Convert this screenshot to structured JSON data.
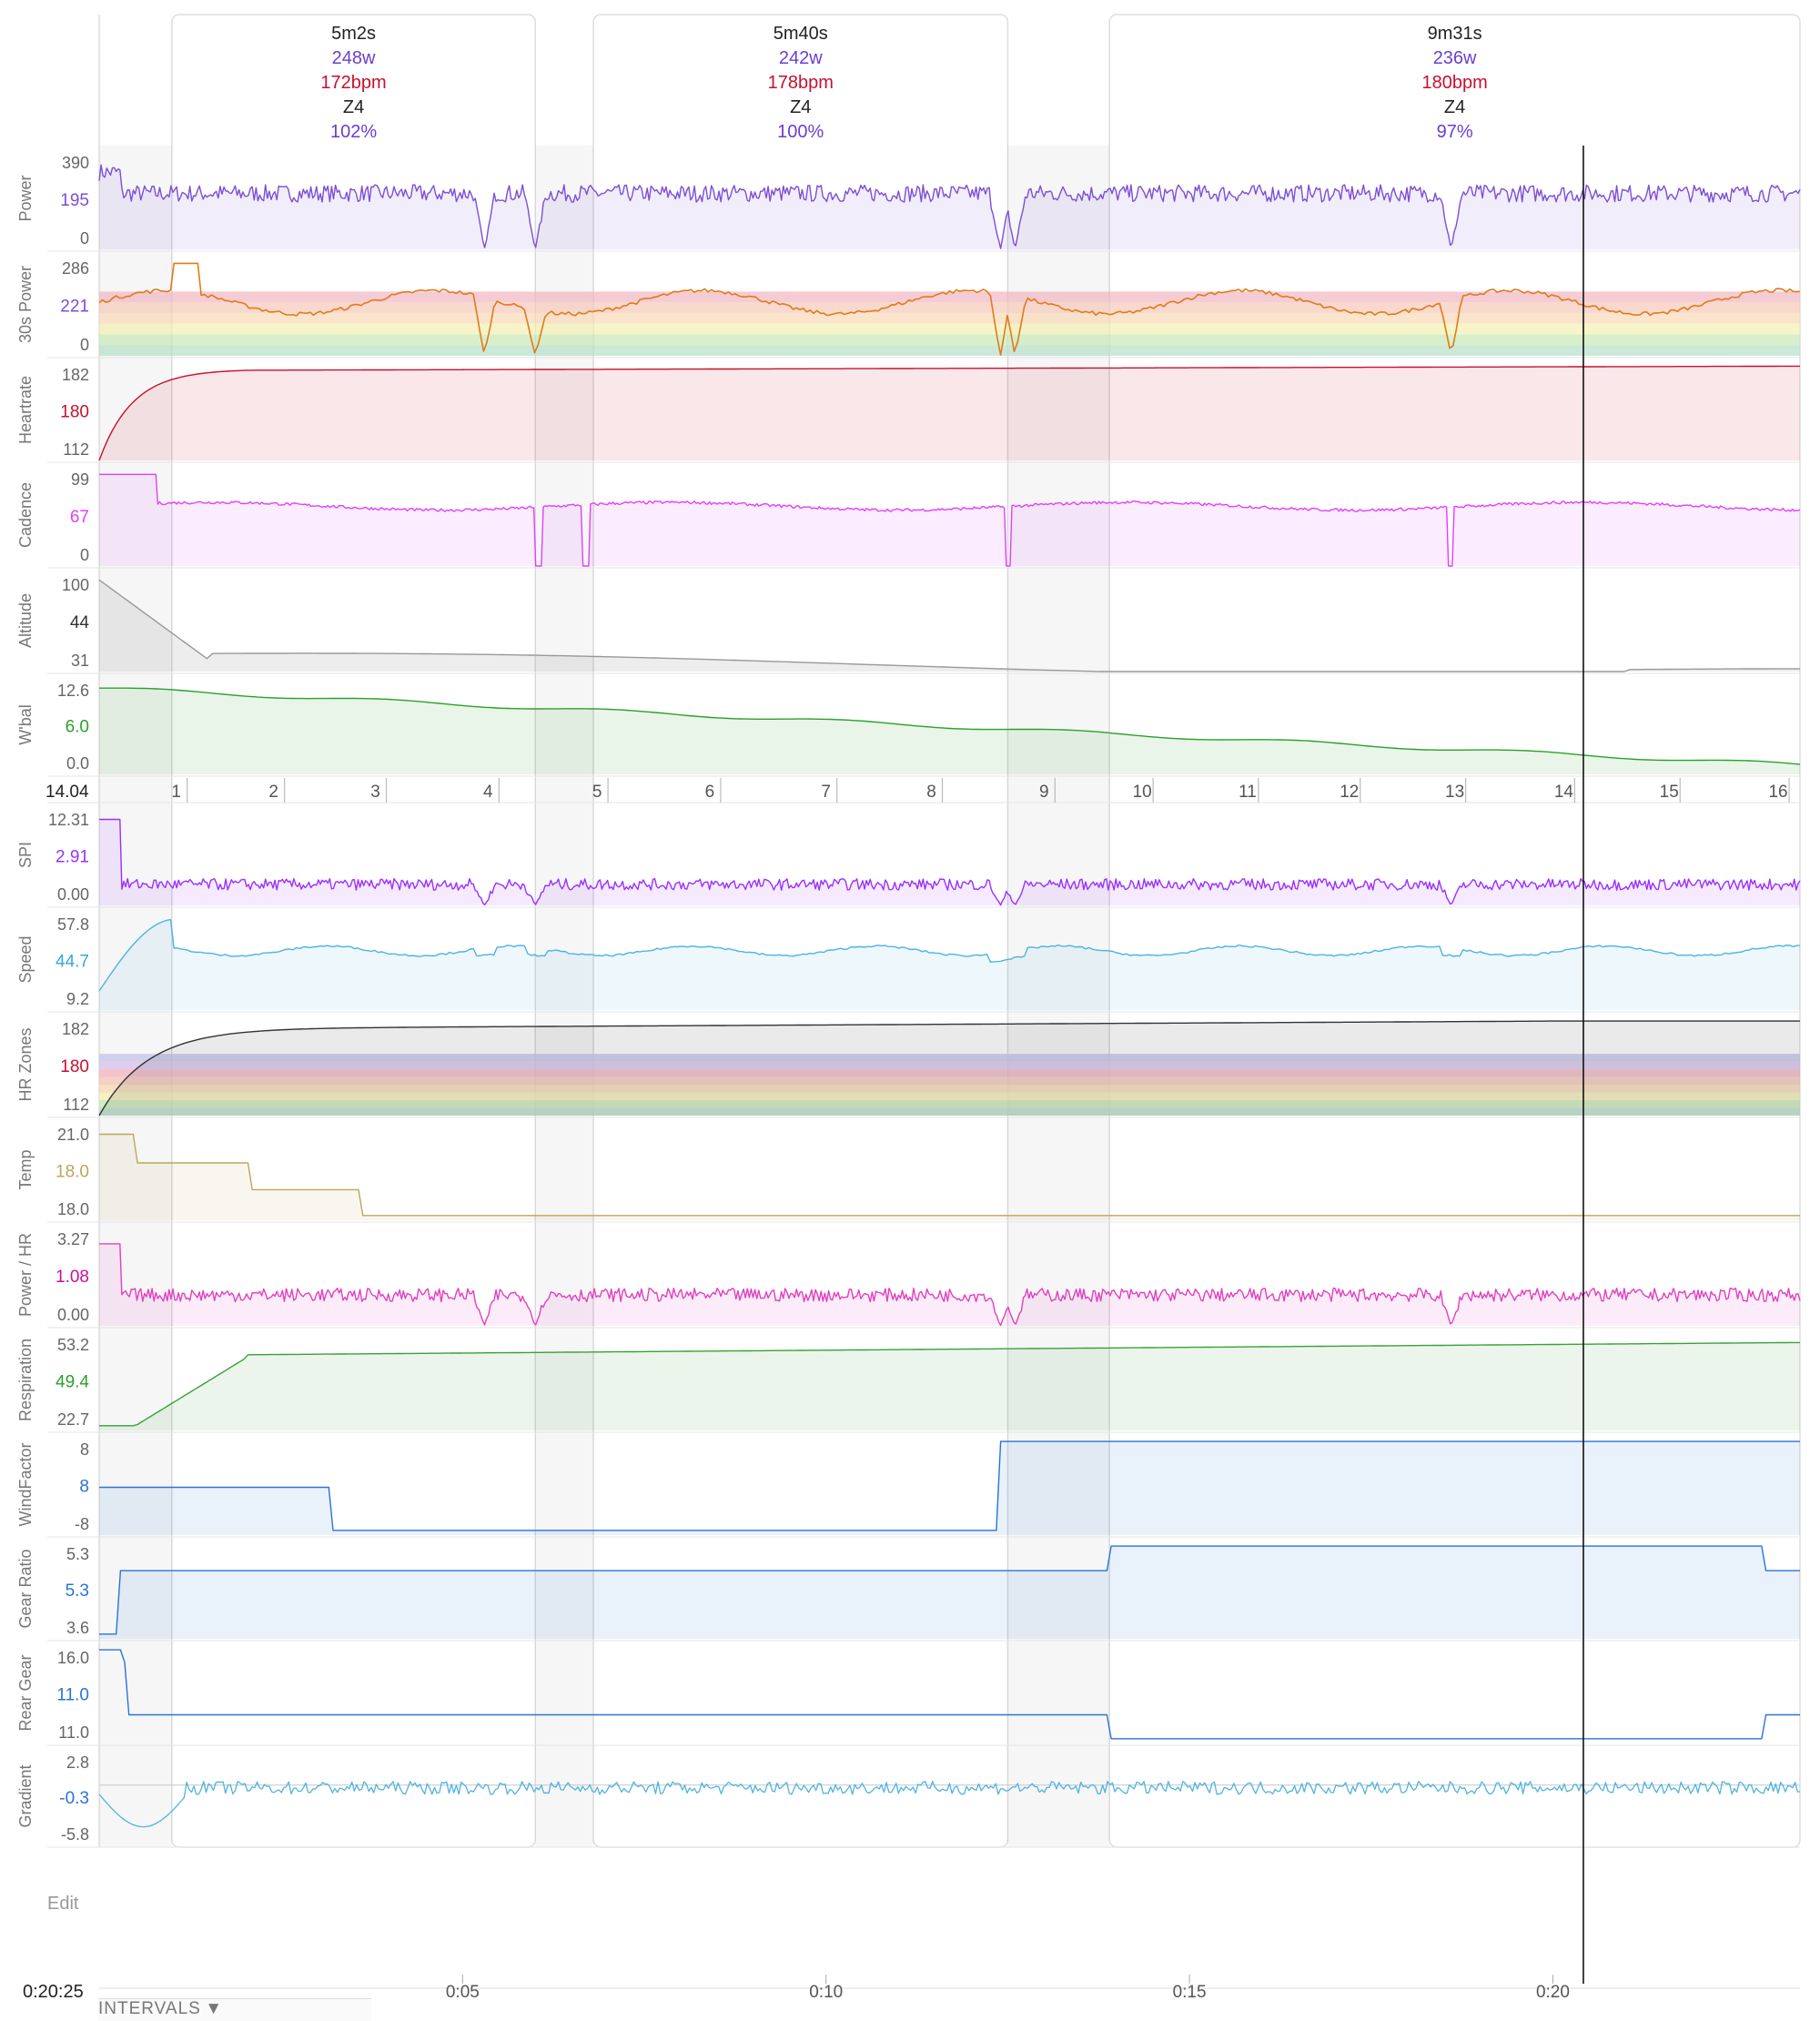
{
  "toolbar": {
    "cursor_time": "0:20:25",
    "edit_label": "Edit",
    "intervals_tab": "INTERVALS"
  },
  "colors": {
    "cursor": "#111111",
    "power": "#7b4fd6",
    "heartrate": "#c8102e",
    "cadence": "#e040fb",
    "altitude": "#999999",
    "wbal": "#2ca02c",
    "spi": "#9b30ff",
    "speed": "#4fb3e0",
    "temp": "#bba85a",
    "power_hr": "#e040c0",
    "respiration": "#3aa03a",
    "windfactor": "#2a73d8",
    "gear": "#2a73d8",
    "gradient": "#4fb3e0"
  },
  "intervals": [
    {
      "duration": "5m2s",
      "watts": "248w",
      "bpm": "172bpm",
      "zone": "Z4",
      "pct": "102%",
      "start_min": 1.0,
      "end_min": 6.0
    },
    {
      "duration": "5m40s",
      "watts": "242w",
      "bpm": "178bpm",
      "zone": "Z4",
      "pct": "100%",
      "start_min": 6.8,
      "end_min": 12.5
    },
    {
      "duration": "9m31s",
      "watts": "236w",
      "bpm": "180bpm",
      "zone": "Z4",
      "pct": "97%",
      "start_min": 13.9,
      "end_min": 23.4
    }
  ],
  "time_axis": {
    "start_min": 0,
    "end_min": 23.4,
    "cursor_min": 20.42,
    "ticks": [
      {
        "min": 5,
        "label": "0:05"
      },
      {
        "min": 10,
        "label": "0:10"
      },
      {
        "min": 15,
        "label": "0:15"
      },
      {
        "min": 20,
        "label": "0:20"
      }
    ]
  },
  "laps": {
    "left_value": "14.04",
    "labels": [
      "1",
      "2",
      "3",
      "4",
      "5",
      "6",
      "7",
      "8",
      "9",
      "10",
      "11",
      "12",
      "13",
      "14",
      "15",
      "16"
    ],
    "label_mins": [
      1.06,
      2.4,
      3.8,
      5.35,
      6.85,
      8.4,
      10.0,
      11.45,
      13.0,
      14.35,
      15.8,
      17.2,
      18.65,
      20.15,
      21.6,
      23.1
    ]
  },
  "panels": [
    {
      "key": "power",
      "label": "Power",
      "top": "390",
      "mid": "195",
      "bottom": "0",
      "mid_color": "#7b4fd6"
    },
    {
      "key": "power30",
      "label": "30s Power",
      "top": "286",
      "mid": "221",
      "bottom": "0",
      "mid_color": "#7b4fd6"
    },
    {
      "key": "heartrate",
      "label": "Heartrate",
      "top": "182",
      "mid": "180",
      "bottom": "112",
      "mid_color": "#c8102e"
    },
    {
      "key": "cadence",
      "label": "Cadence",
      "top": "99",
      "mid": "67",
      "bottom": "0",
      "mid_color": "#e040fb"
    },
    {
      "key": "altitude",
      "label": "Altitude",
      "top": "100",
      "mid": "44",
      "bottom": "31",
      "mid_color": "#333333"
    },
    {
      "key": "wbal",
      "label": "W'bal",
      "top": "12.6",
      "mid": "6.0",
      "bottom": "0.0",
      "mid_color": "#2ca02c"
    },
    {
      "key": "laps",
      "label": "",
      "top": "",
      "mid": "",
      "bottom": "",
      "mid_color": "#333333"
    },
    {
      "key": "spi",
      "label": "SPI",
      "top": "12.31",
      "mid": "2.91",
      "bottom": "0.00",
      "mid_color": "#9b30ff"
    },
    {
      "key": "speed",
      "label": "Speed",
      "top": "57.8",
      "mid": "44.7",
      "bottom": "9.2",
      "mid_color": "#3aa6d6"
    },
    {
      "key": "hrzones",
      "label": "HR Zones",
      "top": "182",
      "mid": "180",
      "bottom": "112",
      "mid_color": "#c8102e"
    },
    {
      "key": "temp",
      "label": "Temp",
      "top": "21.0",
      "mid": "18.0",
      "bottom": "18.0",
      "mid_color": "#bba85a"
    },
    {
      "key": "power_hr",
      "label": "Power / HR",
      "top": "3.27",
      "mid": "1.08",
      "bottom": "0.00",
      "mid_color": "#c8109e"
    },
    {
      "key": "respiration",
      "label": "Respiration",
      "top": "53.2",
      "mid": "49.4",
      "bottom": "22.7",
      "mid_color": "#2ca02c"
    },
    {
      "key": "windfactor",
      "label": "WindFactor",
      "top": "8",
      "mid": "8",
      "bottom": "-8",
      "mid_color": "#2a73d8"
    },
    {
      "key": "gear_ratio",
      "label": "Gear Ratio",
      "top": "5.3",
      "mid": "5.3",
      "bottom": "3.6",
      "mid_color": "#2a73d8"
    },
    {
      "key": "rear_gear",
      "label": "Rear Gear",
      "top": "16.0",
      "mid": "11.0",
      "bottom": "11.0",
      "mid_color": "#2a73d8"
    },
    {
      "key": "gradient",
      "label": "Gradient",
      "top": "2.8",
      "mid": "-0.3",
      "bottom": "-5.8",
      "mid_color": "#2a73d8"
    }
  ]
}
